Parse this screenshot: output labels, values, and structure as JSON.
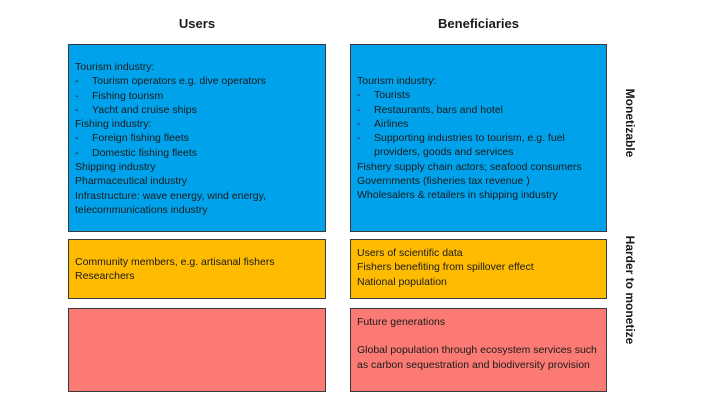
{
  "headers": {
    "users": "Users",
    "beneficiaries": "Beneficiaries"
  },
  "side_labels": {
    "monetizable": "Monetizable",
    "harder": "Harder to monetize"
  },
  "users": {
    "monetizable": {
      "tourism_heading": "Tourism industry:",
      "tourism_items": [
        "Tourism operators e.g. dive operators",
        "Fishing tourism",
        "Yacht and cruise ships"
      ],
      "fishing_heading": "Fishing industry:",
      "fishing_items": [
        "Foreign fishing fleets",
        "Domestic fishing fleets"
      ],
      "shipping": "Shipping industry",
      "pharma": "Pharmaceutical industry",
      "infra_1": "Infrastructure: wave energy, wind energy,",
      "infra_2": "telecommunications industry"
    },
    "harder": [
      "Community members, e.g. artisanal fishers",
      "Researchers"
    ],
    "future": ""
  },
  "beneficiaries": {
    "monetizable": {
      "tourism_heading": "Tourism industry:",
      "tourism_items": [
        "Tourists",
        "Restaurants, bars and hotel",
        "Airlines",
        "Supporting industries to tourism, e.g. fuel providers, goods and services"
      ],
      "lines": [
        "Fishery supply chain actors; seafood consumers",
        "Governments (fisheries tax revenue )",
        "Wholesalers & retailers in shipping industry"
      ]
    },
    "harder": [
      "Users of scientific data",
      "Fishers benefiting from spillover effect",
      "National population"
    ],
    "future": {
      "line1": "Future generations",
      "line2": "Global population through ecosystem services such as carbon sequestration and biodiversity provision"
    }
  },
  "colors": {
    "monetizable": "#00a3eb",
    "harder": "#ffbb00",
    "future": "#fb7b74"
  }
}
